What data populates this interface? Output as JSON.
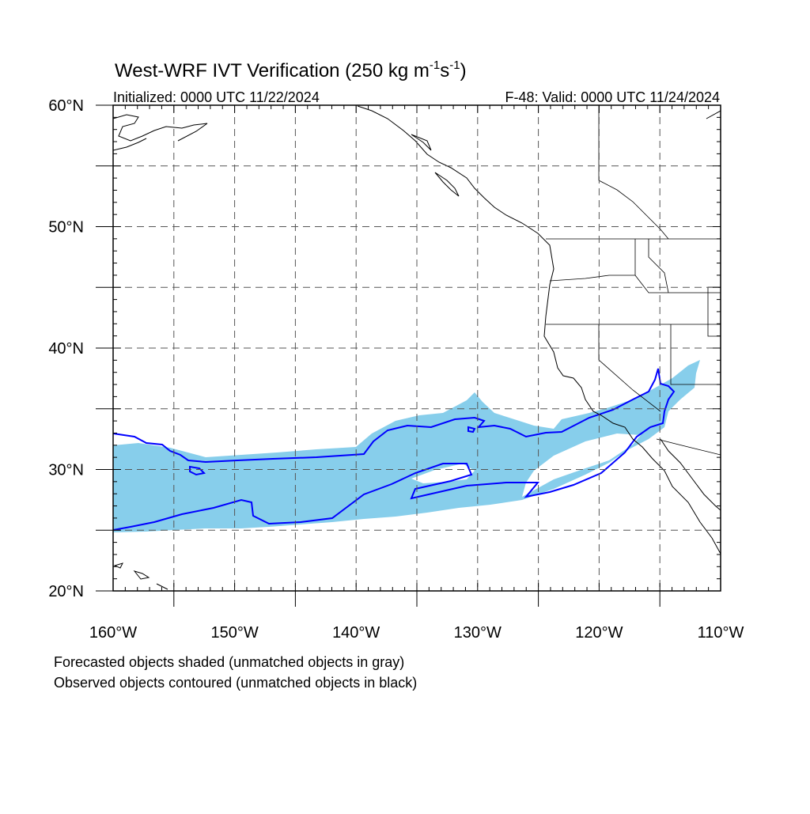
{
  "title": {
    "prefix": "West-WRF IVT Verification (250 kg m",
    "exp1": "-1",
    "mid": "s",
    "exp2": "-1",
    "suffix": ")"
  },
  "subtitle_left": "Initialized: 0000 UTC 11/22/2024",
  "subtitle_right": "F-48: Valid: 0000 UTC 11/24/2024",
  "map": {
    "lon_range": [
      -160,
      -110
    ],
    "lat_range": [
      20,
      60
    ],
    "y_ticks": [
      {
        "lat": 60,
        "label": "60°N"
      },
      {
        "lat": 50,
        "label": "50°N"
      },
      {
        "lat": 40,
        "label": "40°N"
      },
      {
        "lat": 30,
        "label": "30°N"
      },
      {
        "lat": 20,
        "label": "20°N"
      }
    ],
    "x_ticks": [
      {
        "lon": -160,
        "label": "160°W"
      },
      {
        "lon": -150,
        "label": "150°W"
      },
      {
        "lon": -140,
        "label": "140°W"
      },
      {
        "lon": -130,
        "label": "130°W"
      },
      {
        "lon": -120,
        "label": "120°W"
      },
      {
        "lon": -110,
        "label": "110°W"
      }
    ],
    "grid_lons": [
      -155,
      -150,
      -145,
      -140,
      -135,
      -130,
      -125,
      -120,
      -115
    ],
    "grid_lats": [
      55,
      50,
      45,
      40,
      35,
      30,
      25
    ],
    "colors": {
      "forecast_fill": "#87ceeb",
      "observed_contour": "#0000ff",
      "coastline": "#000000",
      "grid": "#555555"
    }
  },
  "footnote_1": "Forecasted objects shaded (unmatched objects in gray)",
  "footnote_2": "Observed objects contoured (unmatched objects in black)"
}
